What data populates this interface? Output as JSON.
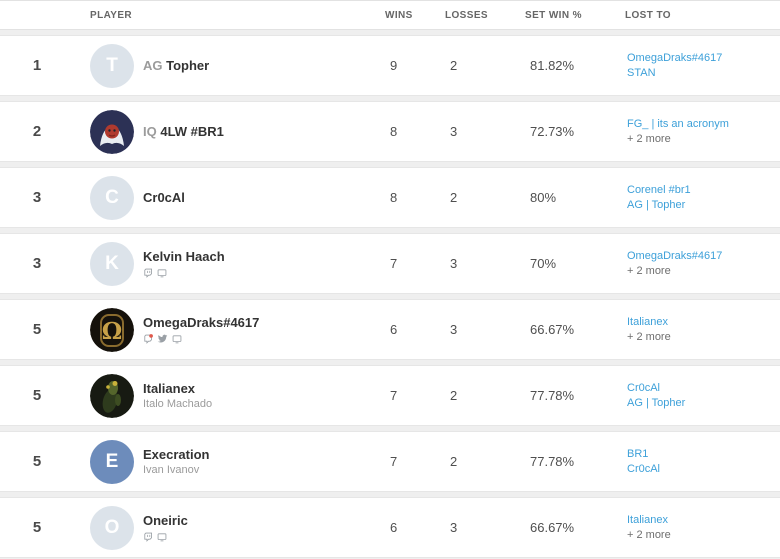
{
  "colors": {
    "link": "#3da0d9",
    "live_badge": "#e0584b",
    "letter_avatar_bg": "#dce3ea",
    "execration_avatar_bg": "#6d8cbb"
  },
  "table": {
    "columns": {
      "player": "PLAYER",
      "wins": "WINS",
      "losses": "LOSSES",
      "set_win": "SET WIN %",
      "lost_to": "LOST TO"
    },
    "rows": [
      {
        "rank": "1",
        "avatar": {
          "kind": "letter",
          "letter": "T",
          "bg": "#dce3ea"
        },
        "prefix": "AG",
        "name": "Topher",
        "subtitle": "",
        "social": [],
        "wins": "9",
        "losses": "2",
        "set_win": "81.82%",
        "lost_to": [
          "OmegaDraks#4617",
          "STAN"
        ],
        "more": ""
      },
      {
        "rank": "2",
        "avatar": {
          "kind": "image",
          "variant": "yeti-avatar"
        },
        "prefix": "IQ",
        "name": "4LW #BR1",
        "subtitle": "",
        "social": [],
        "wins": "8",
        "losses": "3",
        "set_win": "72.73%",
        "lost_to": [
          "FG_ | its an acronym"
        ],
        "more": "+ 2 more"
      },
      {
        "rank": "3",
        "avatar": {
          "kind": "letter",
          "letter": "C",
          "bg": "#dce3ea"
        },
        "prefix": "",
        "name": "Cr0cAl",
        "subtitle": "",
        "social": [],
        "wins": "8",
        "losses": "2",
        "set_win": "80%",
        "lost_to": [
          "Corenel #br1",
          "AG | Topher"
        ],
        "more": ""
      },
      {
        "rank": "3",
        "avatar": {
          "kind": "letter",
          "letter": "K",
          "bg": "#dce3ea"
        },
        "prefix": "",
        "name": "Kelvin Haach",
        "subtitle": "",
        "social": [
          "twitch-icon",
          "monitor-icon"
        ],
        "wins": "7",
        "losses": "3",
        "set_win": "70%",
        "lost_to": [
          "OmegaDraks#4617"
        ],
        "more": "+ 2 more"
      },
      {
        "rank": "5",
        "avatar": {
          "kind": "image",
          "variant": "omega-avatar"
        },
        "prefix": "",
        "name": "OmegaDraks#4617",
        "subtitle": "",
        "social": [
          "twitch-live-icon",
          "twitter-icon",
          "monitor-icon"
        ],
        "wins": "6",
        "losses": "3",
        "set_win": "66.67%",
        "lost_to": [
          "Italianex"
        ],
        "more": "+ 2 more"
      },
      {
        "rank": "5",
        "avatar": {
          "kind": "image",
          "variant": "plant-avatar"
        },
        "prefix": "",
        "name": "Italianex",
        "subtitle": "Italo Machado",
        "social": [],
        "wins": "7",
        "losses": "2",
        "set_win": "77.78%",
        "lost_to": [
          "Cr0cAl",
          "AG | Topher"
        ],
        "more": ""
      },
      {
        "rank": "5",
        "avatar": {
          "kind": "letter",
          "letter": "E",
          "bg": "#6d8cbb"
        },
        "prefix": "",
        "name": "Execration",
        "subtitle": "Ivan Ivanov",
        "social": [],
        "wins": "7",
        "losses": "2",
        "set_win": "77.78%",
        "lost_to": [
          "BR1",
          "Cr0cAl"
        ],
        "more": ""
      },
      {
        "rank": "5",
        "avatar": {
          "kind": "letter",
          "letter": "O",
          "bg": "#dce3ea"
        },
        "prefix": "",
        "name": "Oneiric",
        "subtitle": "",
        "social": [
          "twitch-icon",
          "monitor-icon"
        ],
        "wins": "6",
        "losses": "3",
        "set_win": "66.67%",
        "lost_to": [
          "Italianex"
        ],
        "more": "+ 2 more"
      }
    ]
  }
}
